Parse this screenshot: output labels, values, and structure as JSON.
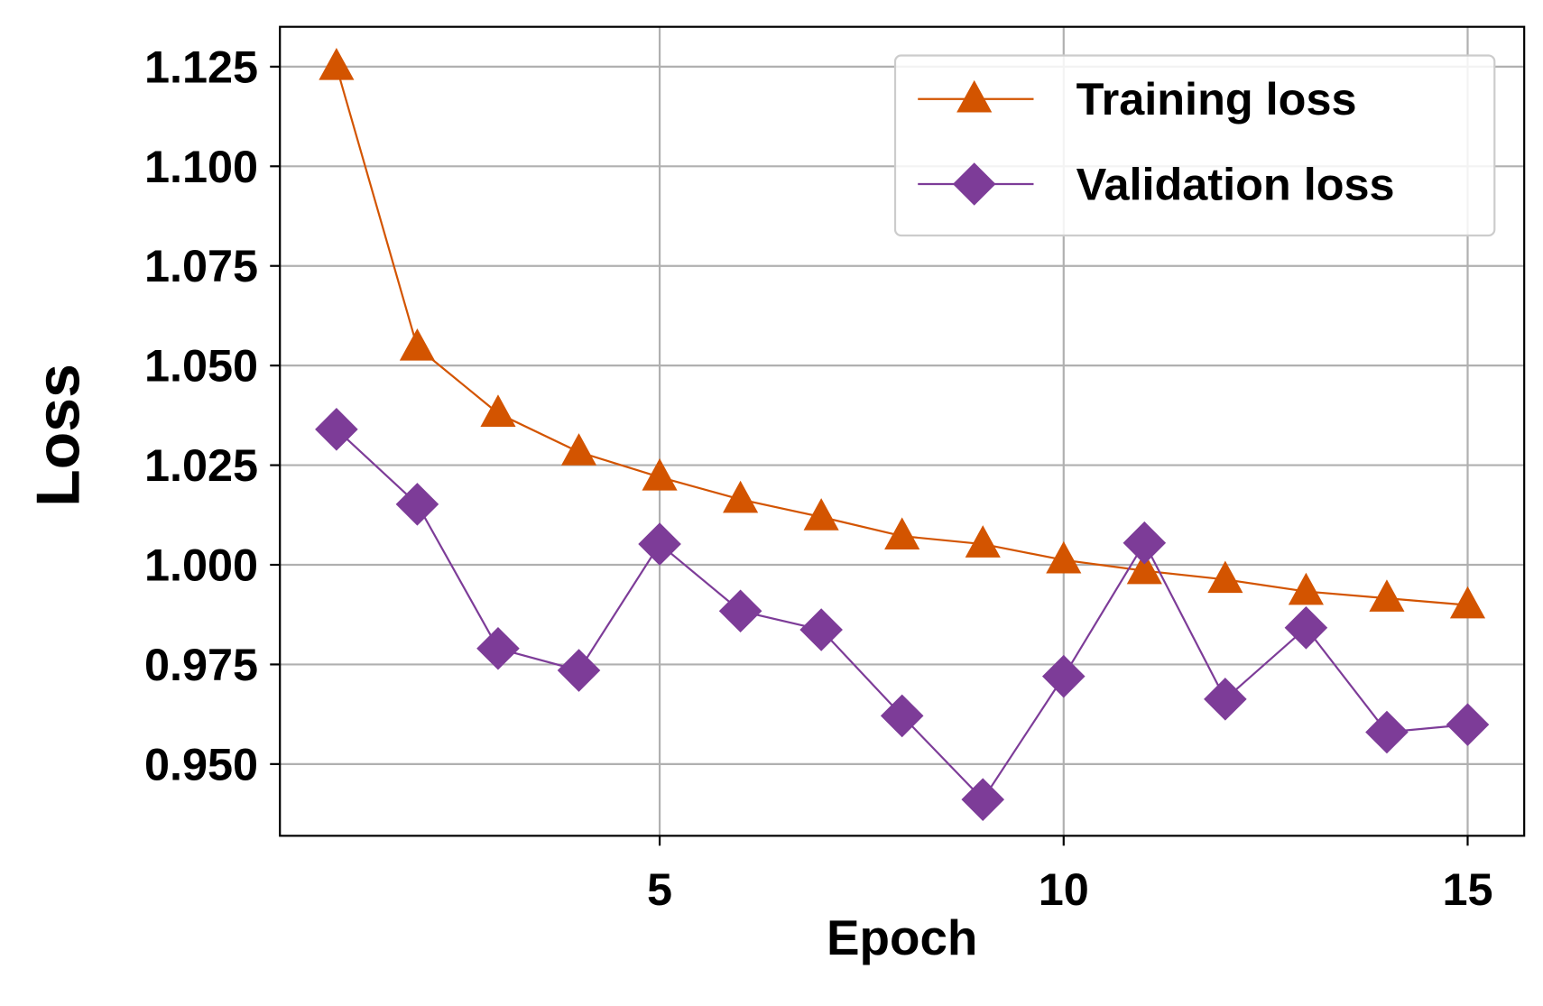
{
  "chart_data": {
    "type": "line",
    "x_label": "Epoch",
    "y_label": "Loss",
    "x": [
      1,
      2,
      3,
      4,
      5,
      6,
      7,
      8,
      9,
      10,
      11,
      12,
      13,
      14,
      15
    ],
    "series": [
      {
        "name": "Training loss",
        "color": "#d35400",
        "marker": "triangle",
        "values": [
          1.125,
          1.0546,
          1.038,
          1.0283,
          1.022,
          1.0164,
          1.012,
          1.0072,
          1.0052,
          1.0012,
          0.9985,
          0.9963,
          0.9933,
          0.9916,
          0.9899
        ]
      },
      {
        "name": "Validation loss",
        "color": "#7d3c98",
        "marker": "diamond",
        "values": [
          1.034,
          1.0152,
          0.979,
          0.9735,
          1.0052,
          0.9884,
          0.9837,
          0.9621,
          0.9411,
          0.972,
          1.0055,
          0.9663,
          0.9842,
          0.958,
          0.9599
        ]
      }
    ],
    "xlim": [
      0.3,
      15.7
    ],
    "ylim": [
      0.932,
      1.135
    ],
    "xticks": [
      5,
      10,
      15
    ],
    "yticks": [
      {
        "value": 0.95,
        "label": "0.950"
      },
      0.975,
      {
        "value": 1.0,
        "label": "1.000"
      },
      1.025,
      {
        "value": 1.05,
        "label": "1.050"
      },
      1.075,
      {
        "value": 1.1,
        "label": "1.100"
      },
      1.125
    ],
    "grid": true,
    "legend": "upper right"
  }
}
